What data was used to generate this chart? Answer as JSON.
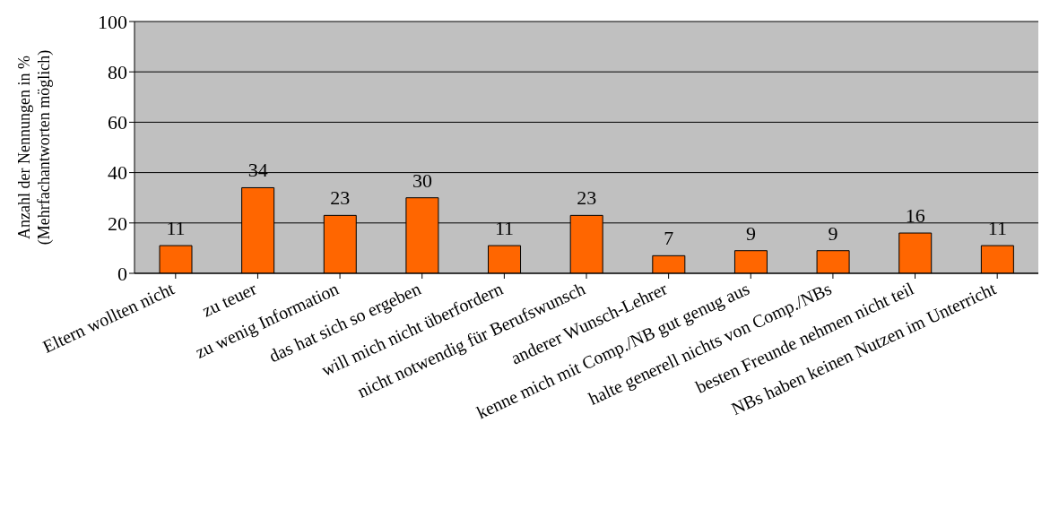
{
  "chart_data": {
    "type": "bar",
    "ylabel": "Anzahl der Nennungen in %\n(Mehrfachantworten möglich)",
    "categories": [
      "Eltern wollten nicht",
      "zu teuer",
      "zu wenig Information",
      "das hat sich so ergeben",
      "will mich nicht überfordern",
      "nicht notwendig für Berufswunsch",
      "anderer Wunsch-Lehrer",
      "kenne mich mit Comp./NB gut genug aus",
      "halte generell nichts von Comp./NBs",
      "besten Freunde nehmen nicht teil",
      "NBs haben keinen Nutzen im Unterricht"
    ],
    "values": [
      11,
      34,
      23,
      30,
      11,
      23,
      7,
      9,
      9,
      16,
      11
    ],
    "color": "#ff6600",
    "ylim": [
      0,
      100
    ],
    "yticks": [
      0,
      20,
      40,
      60,
      80,
      100
    ],
    "grid": "y",
    "data_labels": true
  }
}
